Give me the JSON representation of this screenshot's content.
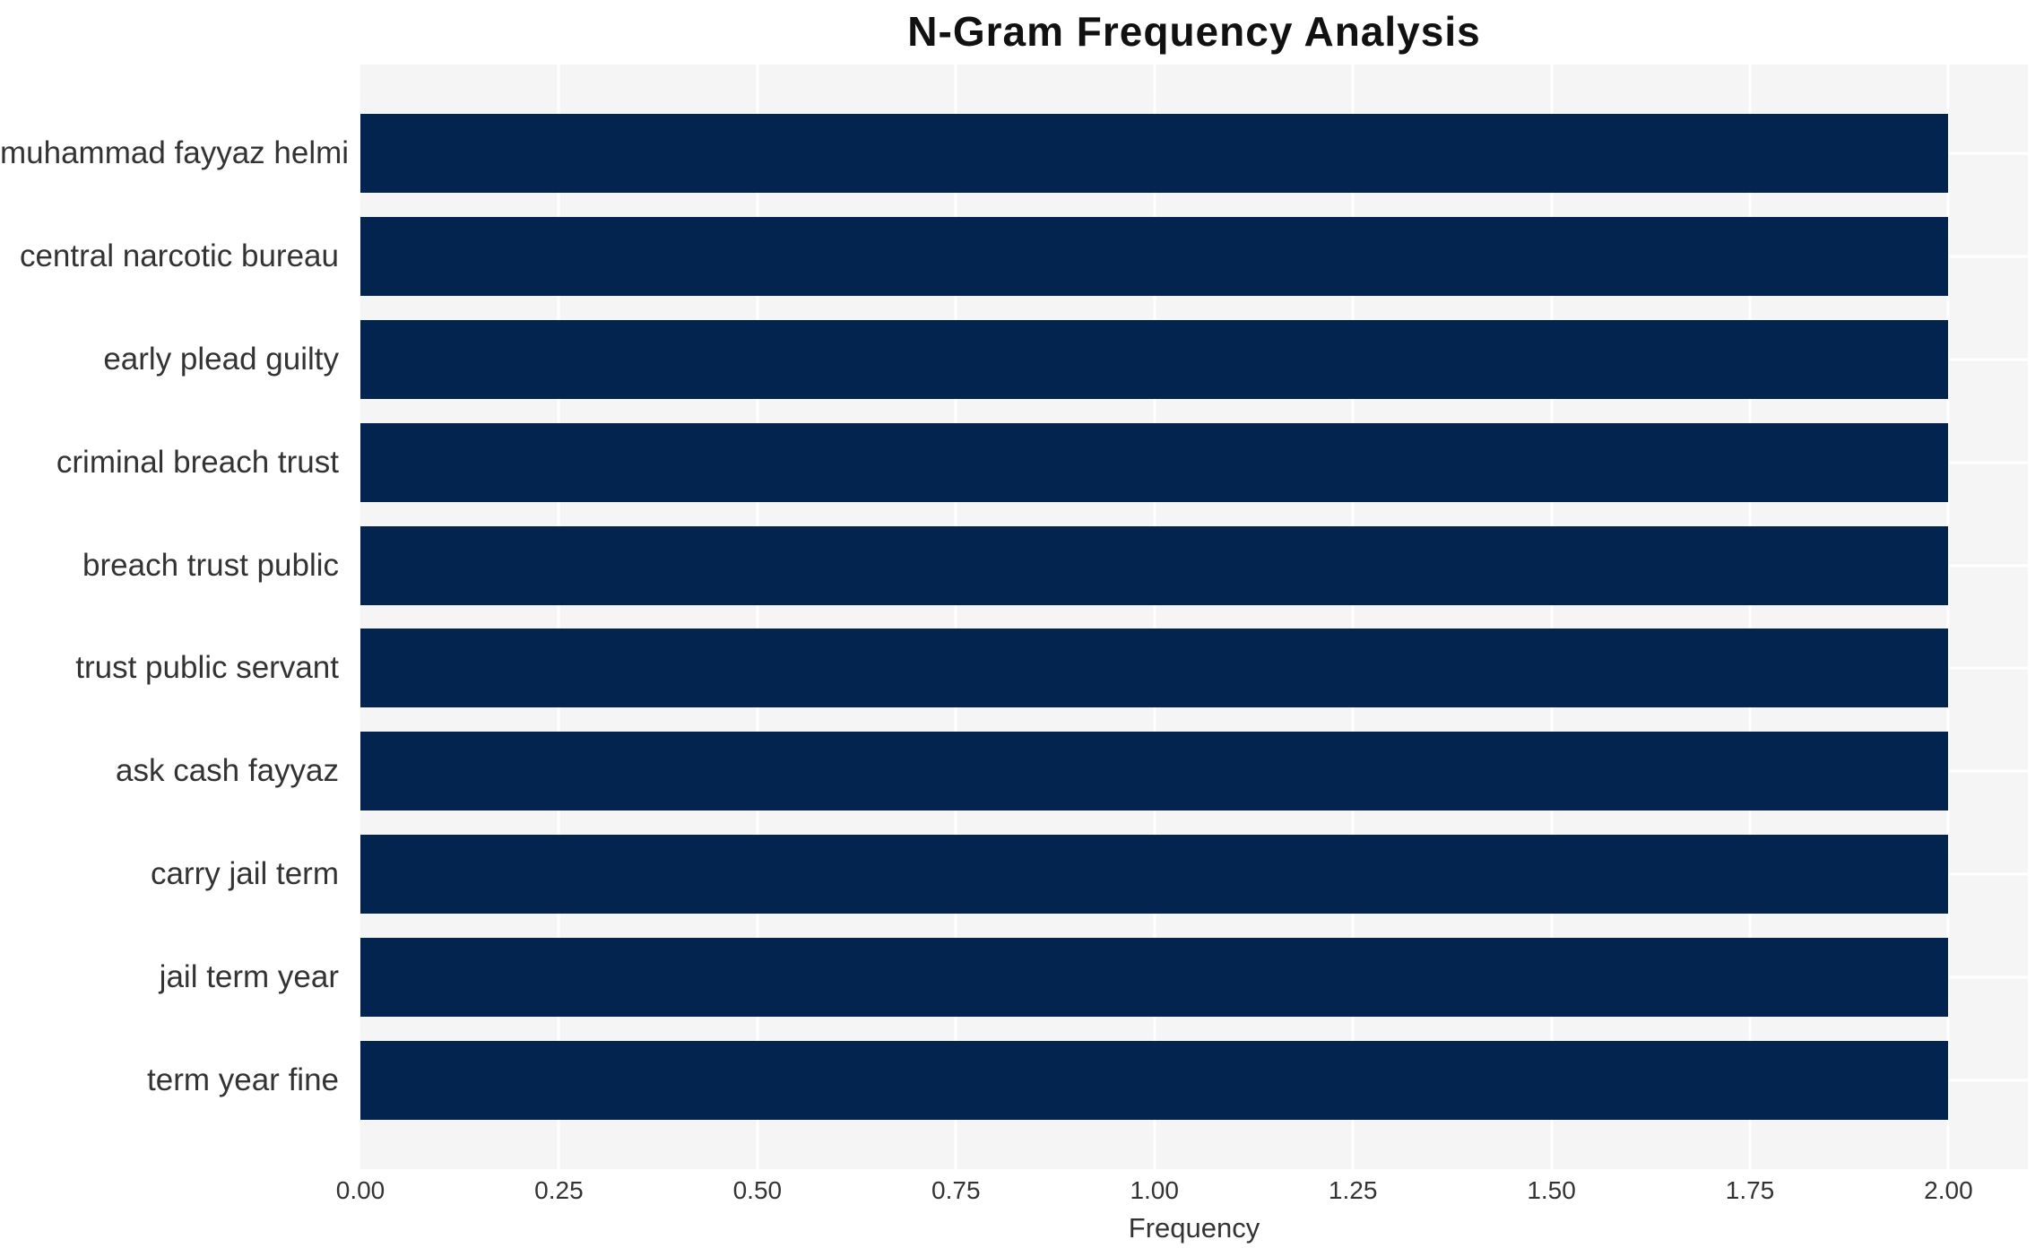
{
  "chart_data": {
    "type": "bar",
    "orientation": "horizontal",
    "title": "N-Gram Frequency Analysis",
    "xlabel": "Frequency",
    "ylabel": "",
    "categories": [
      "muhammad fayyaz helmi",
      "central narcotic bureau",
      "early plead guilty",
      "criminal breach trust",
      "breach trust public",
      "trust public servant",
      "ask cash fayyaz",
      "carry jail term",
      "jail term year",
      "term year fine"
    ],
    "values": [
      2,
      2,
      2,
      2,
      2,
      2,
      2,
      2,
      2,
      2
    ],
    "xlim": [
      0,
      2.1
    ],
    "xticks": [
      {
        "value": 0.0,
        "label": "0.00"
      },
      {
        "value": 0.25,
        "label": "0.25"
      },
      {
        "value": 0.5,
        "label": "0.50"
      },
      {
        "value": 0.75,
        "label": "0.75"
      },
      {
        "value": 1.0,
        "label": "1.00"
      },
      {
        "value": 1.25,
        "label": "1.25"
      },
      {
        "value": 1.5,
        "label": "1.50"
      },
      {
        "value": 1.75,
        "label": "1.75"
      },
      {
        "value": 2.0,
        "label": "2.00"
      }
    ],
    "grid": true,
    "legend": "none",
    "colors": {
      "bar": "#03244E",
      "plot_background": "#F5F5F6",
      "gridline": "#FFFFFF",
      "title_text": "#111111",
      "axis_text": "#333333"
    }
  }
}
